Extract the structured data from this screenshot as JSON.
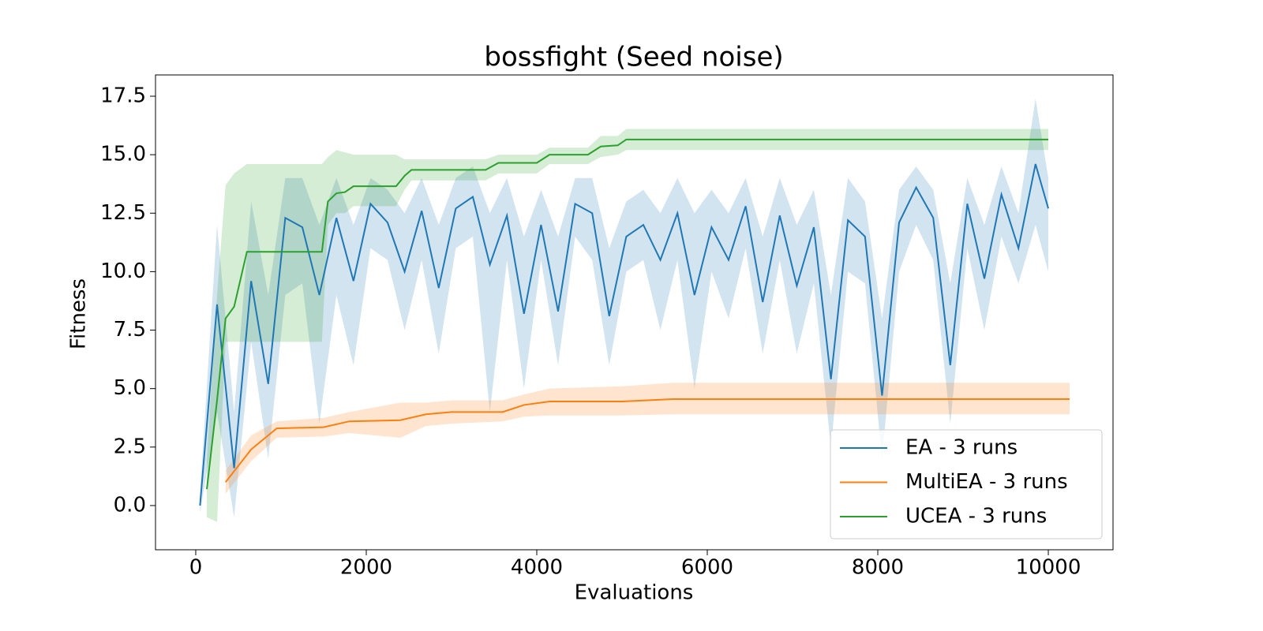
{
  "chart_data": {
    "type": "line",
    "title": "bossfight (Seed noise)",
    "x_label": "Evaluations",
    "y_label": "Fitness",
    "xlim": [
      -472,
      10759
    ],
    "ylim": [
      -1.89,
      18.41
    ],
    "xticks": [
      0,
      2000,
      4000,
      6000,
      8000,
      10000
    ],
    "yticks": [
      {
        "value": 0,
        "label": "0.0"
      },
      2.5,
      {
        "value": 5,
        "label": "5.0"
      },
      7.5,
      {
        "value": 10,
        "label": "10.0"
      },
      12.5,
      {
        "value": 15,
        "label": "15.0"
      },
      17.5
    ],
    "legend": "lower right",
    "grid": false,
    "series": [
      {
        "name": "EA - 3 runs",
        "color": "#1f77b4",
        "x": [
          50,
          250,
          450,
          650,
          850,
          1050,
          1250,
          1450,
          1650,
          1850,
          2050,
          2250,
          2450,
          2650,
          2850,
          3050,
          3250,
          3450,
          3650,
          3850,
          4050,
          4250,
          4450,
          4650,
          4850,
          5050,
          5250,
          5450,
          5650,
          5850,
          6050,
          6250,
          6450,
          6650,
          6850,
          7050,
          7250,
          7450,
          7650,
          7850,
          8050,
          8250,
          8450,
          8650,
          8850,
          9050,
          9250,
          9450,
          9650,
          9850,
          10000
        ],
        "values": [
          0,
          8.6,
          1.6,
          9.6,
          5.2,
          12.3,
          11.9,
          9.0,
          12.3,
          9.6,
          12.9,
          12.1,
          10.0,
          12.6,
          9.3,
          12.7,
          13.2,
          10.3,
          12.4,
          8.2,
          12.0,
          8.3,
          12.9,
          12.5,
          8.1,
          11.5,
          12.0,
          10.5,
          12.5,
          9.0,
          11.9,
          10.5,
          12.8,
          8.7,
          12.4,
          9.4,
          11.9,
          5.4,
          12.2,
          11.5,
          4.7,
          12.1,
          13.6,
          12.3,
          6.0,
          12.9,
          9.7,
          13.3,
          11.0,
          14.6,
          12.7
        ],
        "lower": [
          -0.3,
          4.0,
          -0.5,
          7.0,
          2.0,
          9.0,
          9.5,
          3.5,
          9.0,
          6.0,
          11.0,
          10.5,
          7.5,
          10.5,
          6.5,
          11.0,
          11.5,
          4.0,
          10.5,
          5.0,
          10.5,
          6.0,
          11.5,
          10.5,
          6.0,
          10.0,
          10.5,
          7.5,
          10.5,
          5.0,
          10.0,
          8.0,
          11.0,
          6.5,
          10.5,
          6.5,
          9.5,
          2.5,
          10.0,
          9.5,
          2.0,
          10.0,
          12.0,
          10.5,
          3.5,
          11.0,
          7.5,
          11.5,
          9.5,
          12.0,
          10.0
        ],
        "upper": [
          0.5,
          12.0,
          4.0,
          13.0,
          9.0,
          14.0,
          14.0,
          12.0,
          14.0,
          12.0,
          14.0,
          13.5,
          12.5,
          14.0,
          12.0,
          14.0,
          14.5,
          12.5,
          14.0,
          11.5,
          13.5,
          11.5,
          14.0,
          14.0,
          11.0,
          13.0,
          13.5,
          12.5,
          14.0,
          12.5,
          13.5,
          12.5,
          14.0,
          11.5,
          14.0,
          12.0,
          13.5,
          9.0,
          14.0,
          13.0,
          8.0,
          13.5,
          14.5,
          13.5,
          9.5,
          14.0,
          12.0,
          14.5,
          12.5,
          17.4,
          14.0
        ]
      },
      {
        "name": "MultiEA - 3 runs",
        "color": "#ff7f0e",
        "x": [
          350,
          650,
          950,
          1500,
          1800,
          2400,
          2700,
          3000,
          3600,
          3850,
          4150,
          5000,
          5600,
          10250
        ],
        "values": [
          1.0,
          2.4,
          3.3,
          3.35,
          3.6,
          3.65,
          3.9,
          4.0,
          4.0,
          4.3,
          4.45,
          4.45,
          4.55,
          4.55
        ],
        "lower": [
          0.5,
          1.9,
          2.9,
          2.95,
          3.1,
          2.9,
          3.4,
          3.5,
          3.6,
          3.8,
          3.85,
          3.85,
          3.9,
          3.9
        ],
        "upper": [
          1.5,
          3.0,
          3.6,
          3.75,
          4.0,
          4.4,
          4.4,
          4.5,
          4.5,
          4.75,
          5.0,
          5.1,
          5.25,
          5.25
        ]
      },
      {
        "name": "UCEA - 3 runs",
        "color": "#2ca02c",
        "x": [
          130,
          250,
          350,
          450,
          600,
          1480,
          1550,
          1650,
          1750,
          1850,
          2350,
          2450,
          2530,
          3400,
          3550,
          4000,
          4150,
          4600,
          4750,
          4950,
          5050,
          10000
        ],
        "values": [
          0.7,
          4.5,
          8.0,
          8.5,
          10.85,
          10.85,
          13.0,
          13.35,
          13.4,
          13.65,
          13.65,
          14.1,
          14.35,
          14.35,
          14.65,
          14.65,
          15.0,
          15.0,
          15.35,
          15.4,
          15.65,
          15.65
        ],
        "lower": [
          -0.5,
          -0.7,
          7.0,
          7.0,
          7.0,
          7.0,
          12.0,
          12.5,
          12.5,
          12.8,
          12.8,
          13.5,
          13.9,
          13.9,
          14.2,
          14.2,
          14.6,
          14.6,
          14.9,
          15.0,
          15.2,
          15.2
        ],
        "upper": [
          2.0,
          9.0,
          13.7,
          14.2,
          14.6,
          14.6,
          14.9,
          15.2,
          15.1,
          15.0,
          15.0,
          14.8,
          14.8,
          14.8,
          15.0,
          15.0,
          15.3,
          15.3,
          15.8,
          15.8,
          16.1,
          16.1
        ]
      }
    ]
  }
}
